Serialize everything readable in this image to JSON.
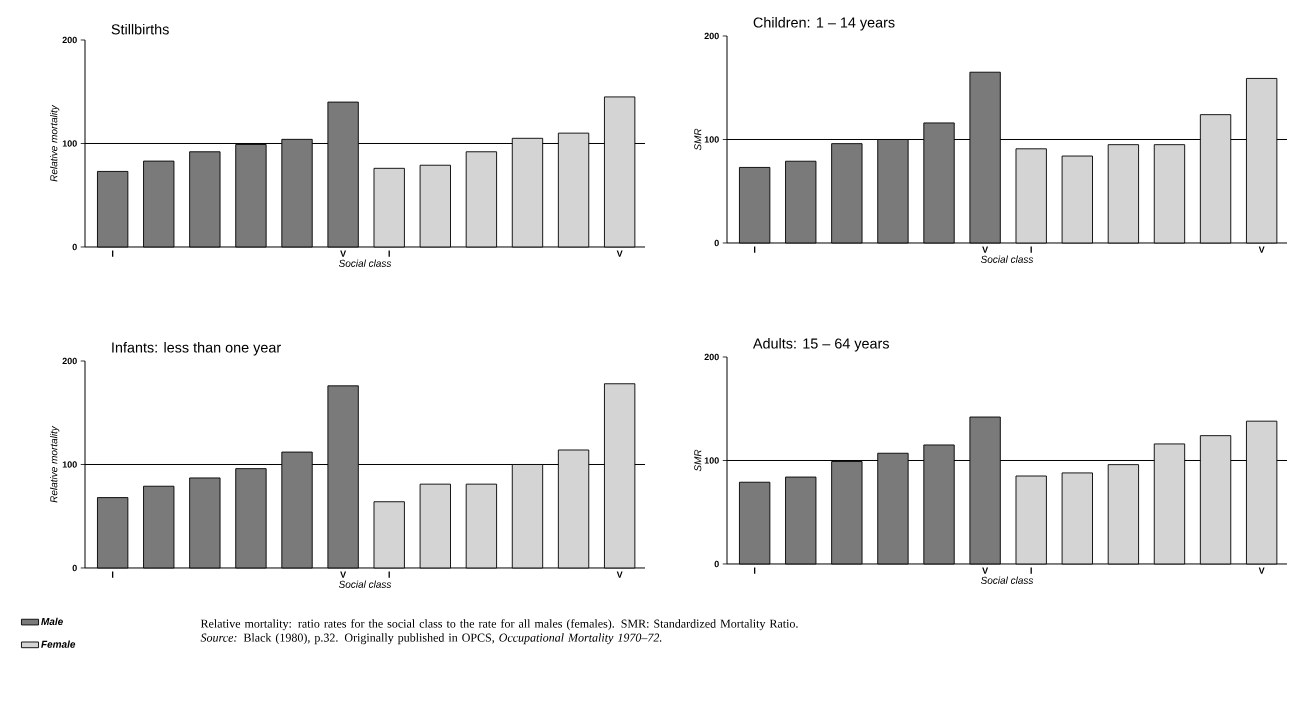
{
  "chart_data": [
    {
      "type": "bar",
      "title": "Stillbirths",
      "xlabel": "Social class",
      "ylabel": "Relative mortality",
      "categories": [
        "I",
        null,
        null,
        null,
        null,
        "V",
        "I",
        null,
        null,
        null,
        null,
        "V"
      ],
      "series": [
        {
          "color": "#7a7a7a",
          "values": [
            73,
            83,
            92,
            99,
            104,
            140,
            null,
            null,
            null,
            null,
            null,
            null
          ]
        },
        {
          "color": "#d4d4d4",
          "values": [
            null,
            null,
            null,
            null,
            null,
            null,
            76,
            79,
            92,
            105,
            110,
            145
          ]
        }
      ],
      "ylim": [
        0,
        200
      ],
      "yticks": [
        0,
        100,
        200
      ],
      "ref_lines": [
        {
          "axis": "y",
          "value": 100
        }
      ]
    },
    {
      "type": "bar",
      "title": "Children: 1 – 14 years",
      "xlabel": "Social class",
      "ylabel": "SMR",
      "categories": [
        "I",
        null,
        null,
        null,
        null,
        "V",
        "I",
        null,
        null,
        null,
        null,
        "V"
      ],
      "series": [
        {
          "color": "#7a7a7a",
          "values": [
            73,
            79,
            96,
            100,
            116,
            165,
            null,
            null,
            null,
            null,
            null,
            null
          ]
        },
        {
          "color": "#d4d4d4",
          "values": [
            null,
            null,
            null,
            null,
            null,
            null,
            91,
            84,
            95,
            95,
            124,
            159
          ]
        }
      ],
      "ylim": [
        0,
        200
      ],
      "yticks": [
        0,
        100,
        200
      ],
      "ref_lines": [
        {
          "axis": "y",
          "value": 100
        }
      ]
    },
    {
      "type": "bar",
      "title": "Infants: less than one year",
      "xlabel": "Social class",
      "ylabel": "Relative mortality",
      "categories": [
        "I",
        null,
        null,
        null,
        null,
        "V",
        "I",
        null,
        null,
        null,
        null,
        "V"
      ],
      "series": [
        {
          "name": "Male",
          "color": "#7a7a7a",
          "values": [
            68,
            79,
            87,
            96,
            112,
            176,
            null,
            null,
            null,
            null,
            null,
            null
          ]
        },
        {
          "name": "Female",
          "color": "#d4d4d4",
          "values": [
            null,
            null,
            null,
            null,
            null,
            null,
            64,
            81,
            81,
            100,
            114,
            178
          ]
        }
      ],
      "ylim": [
        0,
        200
      ],
      "yticks": [
        0,
        100,
        200
      ],
      "ref_lines": [
        {
          "axis": "y",
          "value": 100
        }
      ],
      "legend": "bottom left",
      "annotations": [
        "Relative mortality: ratio rates for the social class to the rate for all males (females). SMR: Standardized Mortality Ratio.",
        "*Source:* Black (1980), p.32. Originally published in OPCS, *Occupational Mortality 1970–72.*"
      ]
    },
    {
      "type": "bar",
      "title": "Adults: 15 – 64 years",
      "xlabel": "Social class",
      "ylabel": "SMR",
      "categories": [
        "I",
        null,
        null,
        null,
        null,
        "V",
        "I",
        null,
        null,
        null,
        null,
        "V"
      ],
      "series": [
        {
          "color": "#7a7a7a",
          "values": [
            79,
            84,
            99,
            107,
            115,
            142,
            null,
            null,
            null,
            null,
            null,
            null
          ]
        },
        {
          "color": "#d4d4d4",
          "values": [
            null,
            null,
            null,
            null,
            null,
            null,
            85,
            88,
            96,
            116,
            124,
            138
          ]
        }
      ],
      "ylim": [
        0,
        200
      ],
      "yticks": [
        0,
        100,
        200
      ],
      "ref_lines": [
        {
          "axis": "y",
          "value": 100
        }
      ]
    }
  ]
}
